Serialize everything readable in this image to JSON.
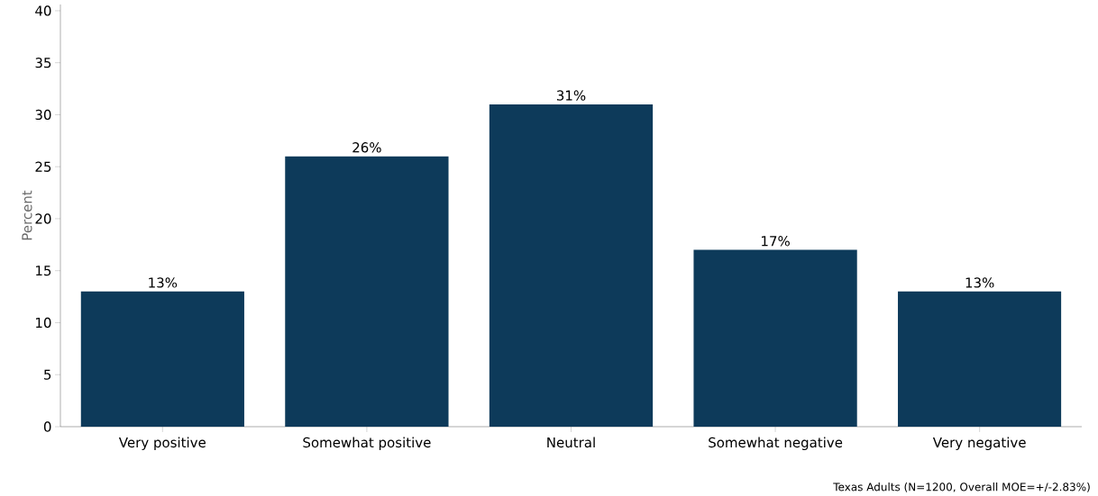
{
  "chart_data": {
    "type": "bar",
    "ylabel": "Percent",
    "categories": [
      "Very positive",
      "Somewhat positive",
      "Neutral",
      "Somewhat negative",
      "Very negative"
    ],
    "values": [
      13,
      26,
      31,
      17,
      13
    ],
    "value_labels": [
      "13%",
      "26%",
      "31%",
      "17%",
      "13%"
    ],
    "color": "#0d3a5a",
    "ylim": [
      0,
      40.6
    ],
    "yticks": [
      0,
      5,
      10,
      15,
      20,
      25,
      30,
      35,
      40
    ],
    "annotations": [
      "Texas Adults (N=1200, Overall MOE=+/-2.83%)"
    ]
  }
}
